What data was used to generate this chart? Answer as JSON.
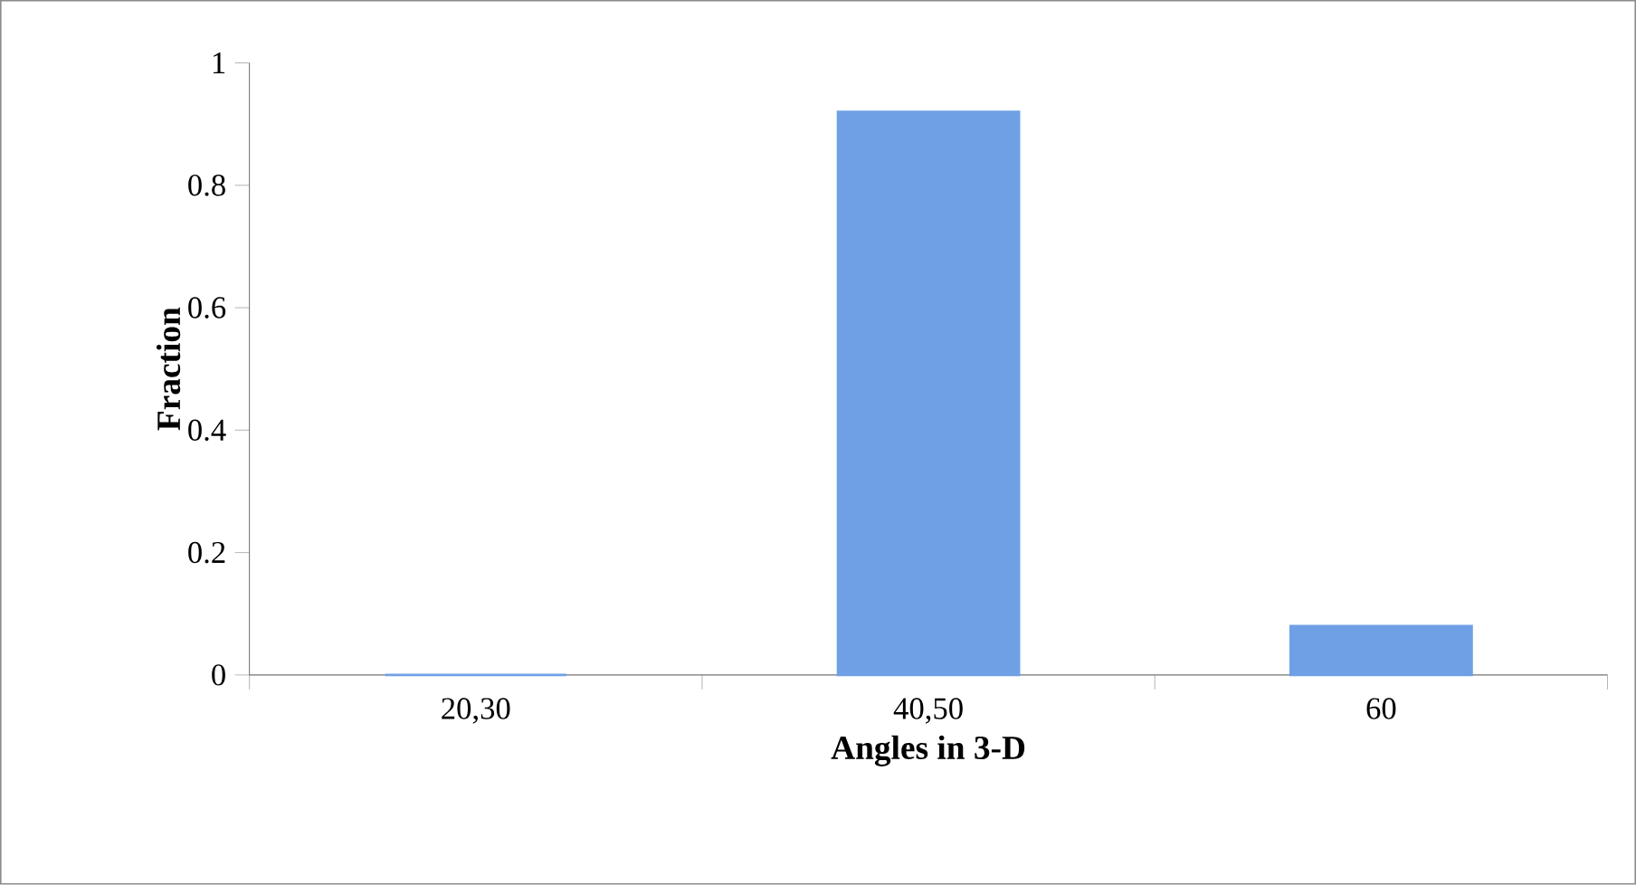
{
  "chart_data": {
    "type": "bar",
    "categories": [
      "20,30",
      "40,50",
      "60"
    ],
    "values": [
      0,
      0.92,
      0.08
    ],
    "color": "#6fa0e6",
    "xlabel": "Angles in 3-D",
    "ylabel": "Fraction",
    "ylim": [
      0,
      1
    ],
    "yticks": [
      0,
      0.2,
      0.4,
      0.6,
      0.8,
      1
    ]
  }
}
